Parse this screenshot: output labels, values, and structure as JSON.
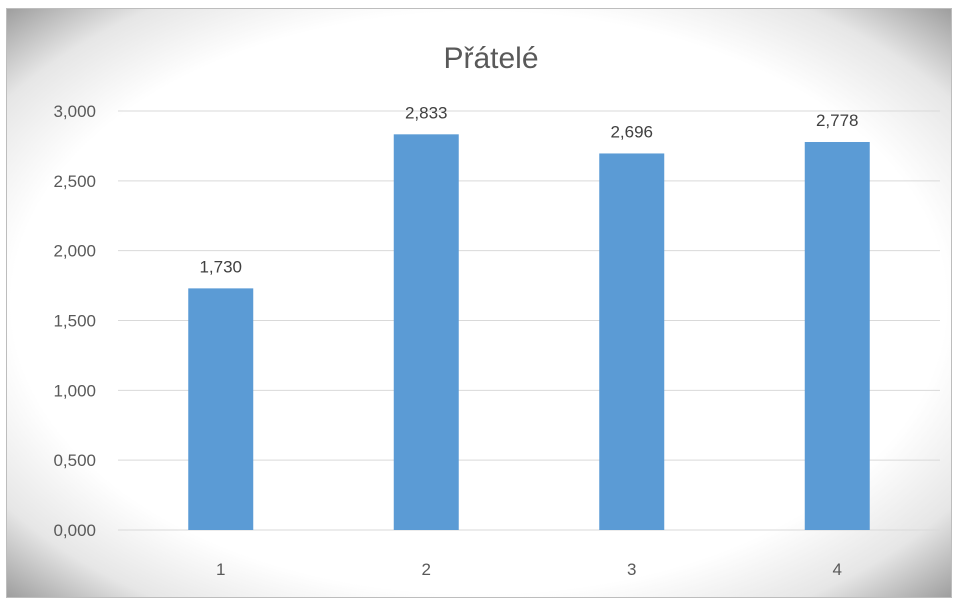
{
  "chart_data": {
    "type": "bar",
    "title": "Přátelé",
    "categories": [
      "1",
      "2",
      "3",
      "4"
    ],
    "values": [
      1.73,
      2.833,
      2.696,
      2.778
    ],
    "value_labels": [
      "1,730",
      "2,833",
      "2,696",
      "2,778"
    ],
    "yticks": [
      0,
      0.5,
      1.0,
      1.5,
      2.0,
      2.5,
      3.0
    ],
    "ytick_labels": [
      "0,000",
      "0,500",
      "1,000",
      "1,500",
      "2,000",
      "2,500",
      "3,000"
    ],
    "ylim": [
      0,
      3.0
    ],
    "xlabel": "",
    "ylabel": "",
    "grid": true,
    "legend": "none",
    "bar_color": "#5b9bd5"
  }
}
